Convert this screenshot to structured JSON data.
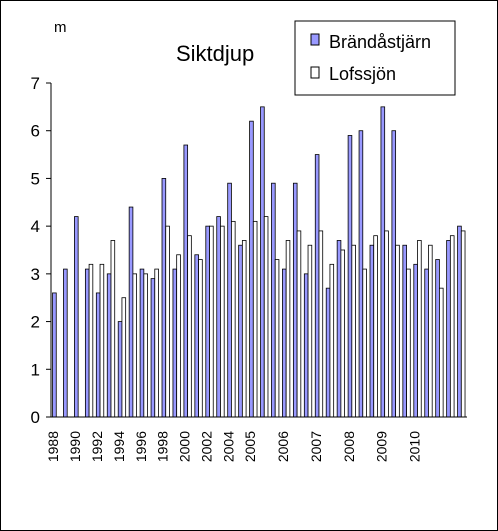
{
  "chart_data": {
    "type": "bar",
    "title": "Siktdjup",
    "unit_label": "m",
    "ylim": [
      0,
      7
    ],
    "yticks": [
      0,
      1,
      2,
      3,
      4,
      5,
      6,
      7
    ],
    "x_tick_labels": [
      "1988",
      "1990",
      "1992",
      "1994",
      "1996",
      "1998",
      "2000",
      "2002",
      "2004",
      "2005",
      "2006",
      "2007",
      "2008",
      "2009",
      "2010"
    ],
    "grid": false,
    "legend_position": "top-right",
    "colors": {
      "Brändåstjärn": "#9999ff",
      "Lofssjön": "#ffffff",
      "outline": "#000000"
    },
    "series": [
      {
        "name": "Brändåstjärn",
        "values": [
          2.6,
          3.1,
          4.2,
          3.1,
          2.6,
          3.0,
          2.0,
          4.4,
          3.1,
          2.9,
          5.0,
          3.1,
          5.7,
          3.4,
          4.0,
          4.2,
          4.9,
          3.6,
          6.2,
          6.5,
          4.9,
          3.1,
          4.9,
          3.0,
          5.5,
          2.7,
          3.7,
          5.9,
          6.0,
          3.6,
          6.5,
          6.0,
          3.6,
          3.2,
          3.1,
          3.3,
          3.7,
          4.0
        ]
      },
      {
        "name": "Lofssjön",
        "values": [
          null,
          null,
          null,
          3.2,
          3.2,
          3.7,
          2.5,
          3.0,
          3.0,
          3.1,
          4.0,
          3.4,
          3.8,
          3.3,
          4.0,
          4.0,
          4.1,
          3.7,
          4.1,
          4.2,
          3.3,
          3.7,
          3.9,
          3.6,
          3.9,
          3.2,
          3.5,
          3.6,
          3.1,
          3.8,
          3.9,
          3.6,
          3.1,
          3.7,
          3.6,
          2.7,
          3.8,
          3.9
        ]
      }
    ]
  }
}
